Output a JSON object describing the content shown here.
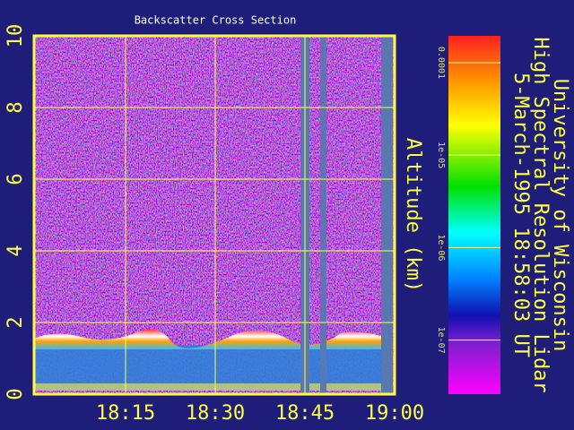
{
  "chart_data": {
    "type": "heatmap",
    "title": "Backscatter Cross Section",
    "ylabel": "Altitude (km)",
    "side_titles": [
      "University of Wisconsin",
      "High Spectral Resolution Lidar",
      "5-March-1995 18:58:03 UT"
    ],
    "xlim": [
      1080,
      1140
    ],
    "xticks": [
      {
        "value": 1095,
        "label": "18:15"
      },
      {
        "value": 1110,
        "label": "18:30"
      },
      {
        "value": 1125,
        "label": "18:45"
      },
      {
        "value": 1140,
        "label": "19:00"
      }
    ],
    "ylim": [
      0,
      10
    ],
    "yticks": [
      0,
      2,
      4,
      6,
      8,
      10
    ],
    "grid": true,
    "colorbar": {
      "scale": "log",
      "lim": [
        2.6e-08,
        0.000195
      ],
      "ticks": [
        {
          "value": 0.0001,
          "label": "0.0001"
        },
        {
          "value": 1e-05,
          "label": "1e-05"
        },
        {
          "value": 1e-06,
          "label": "1e-06"
        },
        {
          "value": 1e-07,
          "label": "1e-07"
        }
      ]
    }
  }
}
